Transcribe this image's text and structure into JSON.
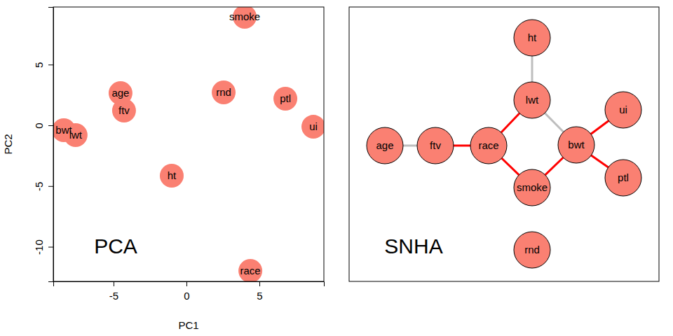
{
  "chart_data": [
    {
      "type": "scatter",
      "title": "PCA",
      "xlabel": "PC1",
      "ylabel": "PC2",
      "labels": [
        "bwt",
        "lwt",
        "age",
        "ftv",
        "ht",
        "rnd",
        "smoke",
        "ptl",
        "ui",
        "race"
      ],
      "x": [
        -8.41,
        -7.6,
        -4.52,
        -4.28,
        -1.01,
        2.55,
        3.99,
        6.78,
        8.7,
        4.38
      ],
      "y": [
        -0.4,
        -0.81,
        2.65,
        1.21,
        -4.15,
        2.71,
        8.93,
        2.19,
        -0.12,
        -11.99
      ],
      "xlim": [
        -9.13,
        9.42
      ],
      "ylim": [
        -12.85,
        9.74
      ],
      "xticks": [
        -5,
        0,
        5
      ],
      "yticks": [
        -10,
        -5,
        0,
        5
      ],
      "color": "#fa8072"
    },
    {
      "type": "network",
      "title": "SNHA",
      "nodes": [
        "ht",
        "lwt",
        "ui",
        "age",
        "ftv",
        "race",
        "bwt",
        "smoke",
        "ptl",
        "rnd"
      ],
      "edges": [
        {
          "from": "ht",
          "to": "lwt"
        },
        {
          "from": "lwt",
          "to": "bwt"
        },
        {
          "from": "age",
          "to": "ftv"
        },
        {
          "from": "ftv",
          "to": "race"
        },
        {
          "from": "race",
          "to": "lwt"
        },
        {
          "from": "race",
          "to": "smoke"
        },
        {
          "from": "smoke",
          "to": "bwt"
        },
        {
          "from": "bwt",
          "to": "ui"
        },
        {
          "from": "bwt",
          "to": "ptl"
        }
      ],
      "colors": [
        "#bebebe",
        "#bebebe",
        "#bebebe",
        "#ff0000",
        "#ff0000",
        "#ff0000",
        "#ff0000",
        "#ff0000",
        "#ff0000"
      ],
      "color": "#fa8072"
    }
  ]
}
